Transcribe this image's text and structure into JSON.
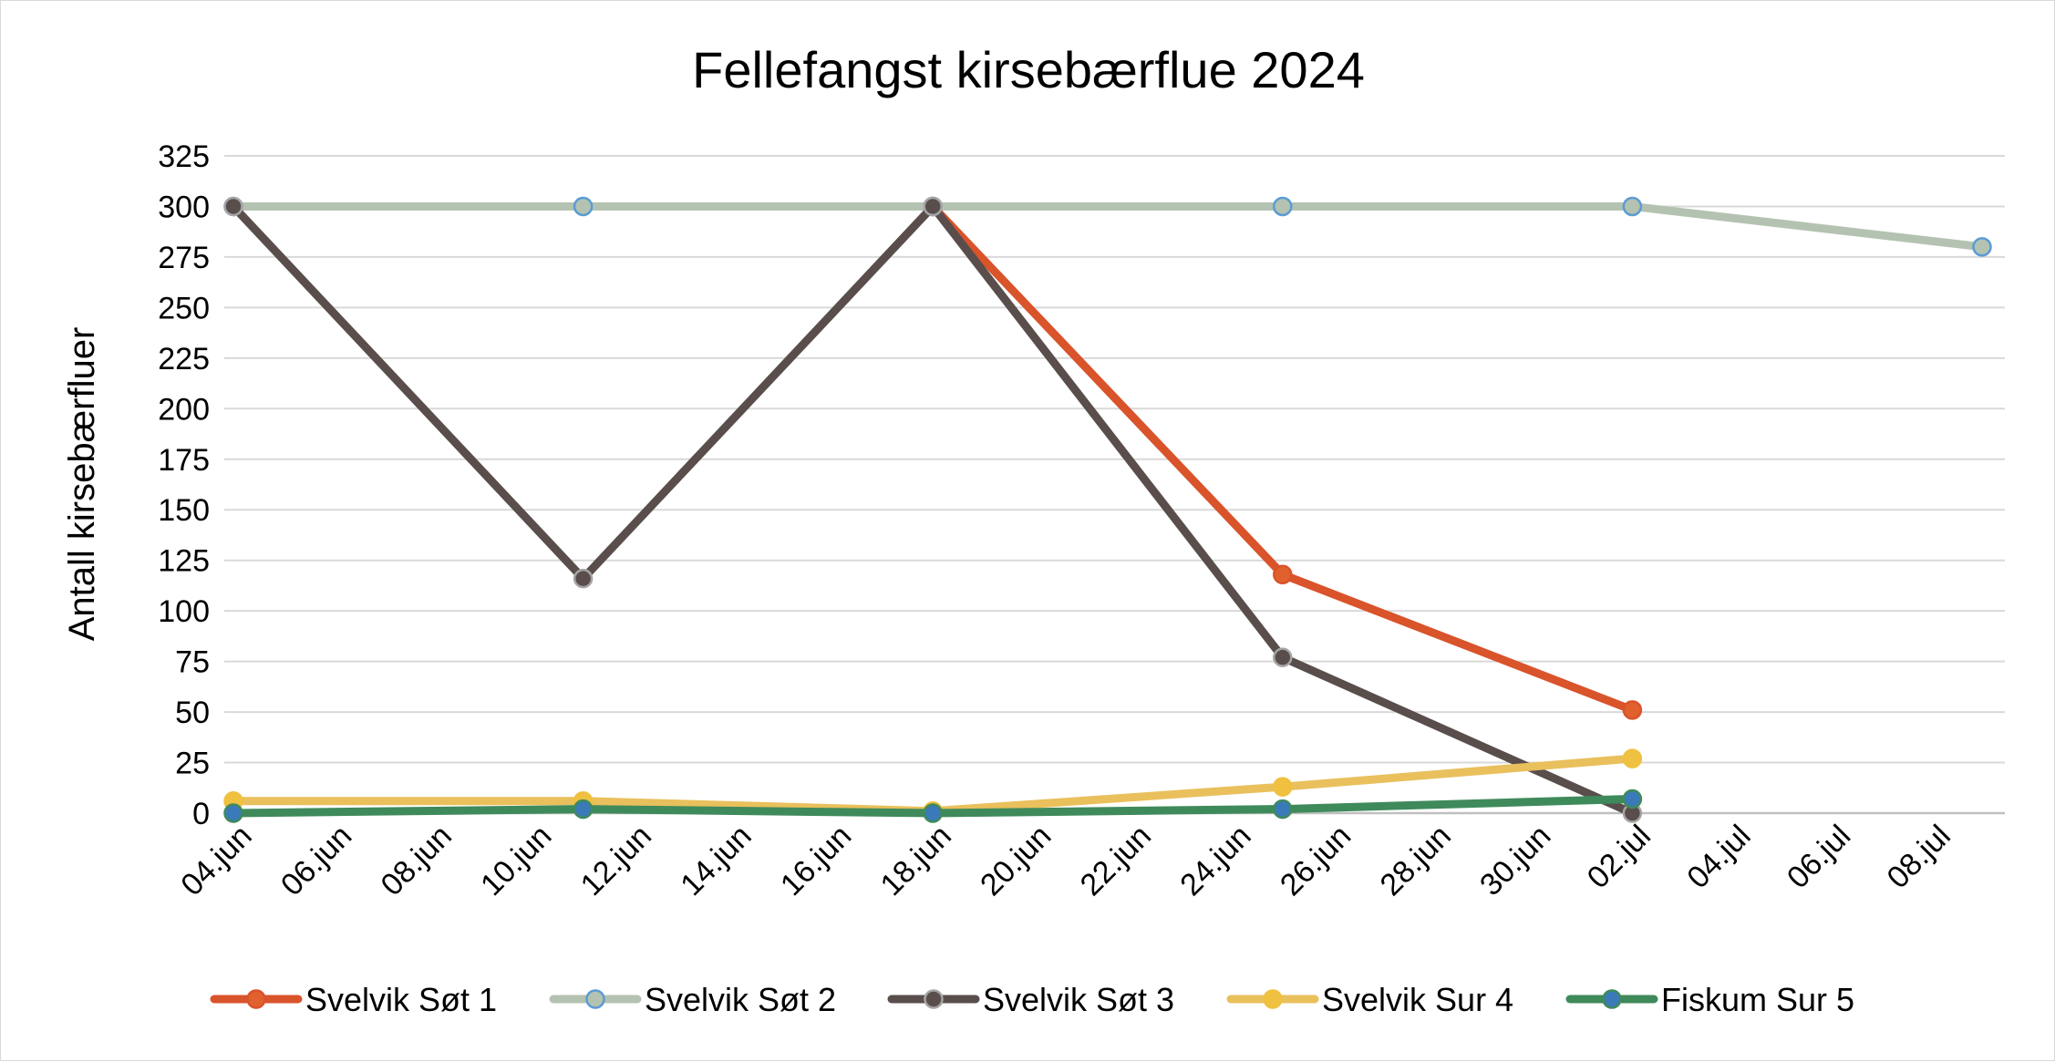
{
  "chart_data": {
    "type": "line",
    "title": "Fellefangst kirsebærflue 2024",
    "xlabel": "",
    "ylabel": "Antall kirsebærfluer",
    "ylim": [
      0,
      325
    ],
    "yticks": [
      0,
      25,
      50,
      75,
      100,
      125,
      150,
      175,
      200,
      225,
      250,
      275,
      300,
      325
    ],
    "xlim": [
      "2024-06-04",
      "2024-07-09"
    ],
    "xtick_labels": [
      "04.jun",
      "06.jun",
      "08.jun",
      "10.jun",
      "12.jun",
      "14.jun",
      "16.jun",
      "18.jun",
      "20.jun",
      "22.jun",
      "24.jun",
      "26.jun",
      "28.jun",
      "30.jun",
      "02.jul",
      "04.jul",
      "06.jul",
      "08.jul"
    ],
    "x": [
      "2024-06-04",
      "2024-06-11",
      "2024-06-18",
      "2024-06-25",
      "2024-07-02",
      "2024-07-09"
    ],
    "grid": true,
    "legend_position": "bottom",
    "series": [
      {
        "name": "Svelvik Søt 1",
        "color": "#d9532b",
        "marker_fill": "#e0602e",
        "marker_edge": "#d9532b",
        "values": [
          null,
          null,
          300,
          118,
          51,
          null
        ]
      },
      {
        "name": "Svelvik Søt 2",
        "color": "#b4c3b1",
        "marker_fill": "#b4c3b1",
        "marker_edge": "#5b9bd5",
        "values": [
          300,
          300,
          300,
          300,
          300,
          280
        ]
      },
      {
        "name": "Svelvik Søt 3",
        "color": "#594e4c",
        "marker_fill": "#594e4c",
        "marker_edge": "#a5a5a5",
        "values": [
          300,
          116,
          300,
          77,
          0,
          null
        ]
      },
      {
        "name": "Svelvik Sur 4",
        "color": "#e9c05c",
        "marker_fill": "#f0c040",
        "marker_edge": "#f0c040",
        "values": [
          6,
          6,
          1,
          13,
          27,
          null
        ]
      },
      {
        "name": "Fiskum Sur 5",
        "color": "#3f8a5b",
        "marker_fill": "#3a7ab8",
        "marker_edge": "#3f8a5b",
        "values": [
          0,
          2,
          0,
          2,
          7,
          null
        ]
      }
    ]
  }
}
